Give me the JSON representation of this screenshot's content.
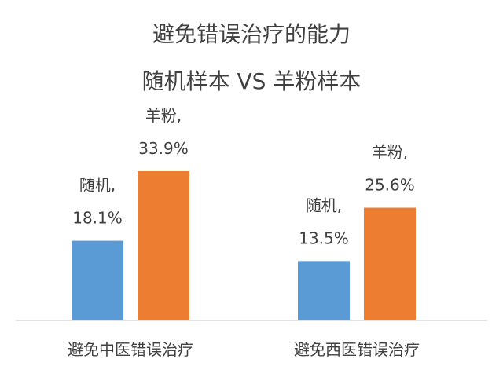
{
  "chart_data": {
    "type": "bar",
    "title": "避免错误治疗的能力",
    "subtitle": "随机样本 VS 羊粉样本",
    "categories": [
      "避免中医错误治疗",
      "避免西医错误治疗"
    ],
    "series": [
      {
        "name": "随机",
        "values": [
          18.1,
          13.5
        ],
        "value_labels": [
          "18.1%",
          "13.5%"
        ],
        "color": "#5b9bd5"
      },
      {
        "name": "羊粉",
        "values": [
          33.9,
          25.6
        ],
        "value_labels": [
          "33.9%",
          "25.6%"
        ],
        "color": "#ed7d31"
      }
    ],
    "ylim": [
      0,
      42
    ],
    "grid": false,
    "legend": "none",
    "data_label_format": "series name, value",
    "label_separator": ",",
    "colors": {
      "text": "#404040",
      "axis": "#d9d9d9"
    }
  }
}
